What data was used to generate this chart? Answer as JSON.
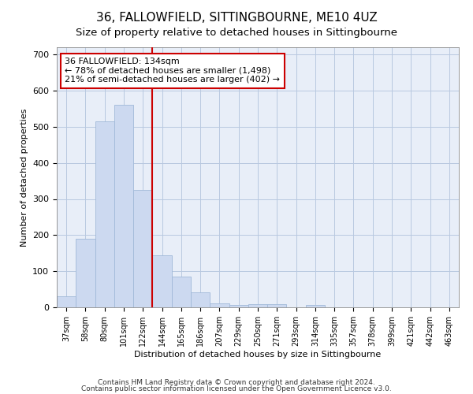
{
  "title": "36, FALLOWFIELD, SITTINGBOURNE, ME10 4UZ",
  "subtitle": "Size of property relative to detached houses in Sittingbourne",
  "xlabel": "Distribution of detached houses by size in Sittingbourne",
  "ylabel": "Number of detached properties",
  "categories": [
    "37sqm",
    "58sqm",
    "80sqm",
    "101sqm",
    "122sqm",
    "144sqm",
    "165sqm",
    "186sqm",
    "207sqm",
    "229sqm",
    "250sqm",
    "271sqm",
    "293sqm",
    "314sqm",
    "335sqm",
    "357sqm",
    "378sqm",
    "399sqm",
    "421sqm",
    "442sqm",
    "463sqm"
  ],
  "values": [
    30,
    190,
    515,
    560,
    325,
    143,
    86,
    41,
    11,
    7,
    9,
    9,
    0,
    7,
    0,
    0,
    0,
    0,
    0,
    0,
    0
  ],
  "bar_color": "#ccd9f0",
  "bar_edge_color": "#a0b8d8",
  "vline_color": "#cc0000",
  "annotation_title": "36 FALLOWFIELD: 134sqm",
  "annotation_line1": "← 78% of detached houses are smaller (1,498)",
  "annotation_line2": "21% of semi-detached houses are larger (402) →",
  "annotation_box_color": "#cc0000",
  "ylim": [
    0,
    720
  ],
  "yticks": [
    0,
    100,
    200,
    300,
    400,
    500,
    600,
    700
  ],
  "footer_line1": "Contains HM Land Registry data © Crown copyright and database right 2024.",
  "footer_line2": "Contains public sector information licensed under the Open Government Licence v3.0.",
  "background_color": "#e8eef8",
  "title_fontsize": 11,
  "subtitle_fontsize": 9.5
}
